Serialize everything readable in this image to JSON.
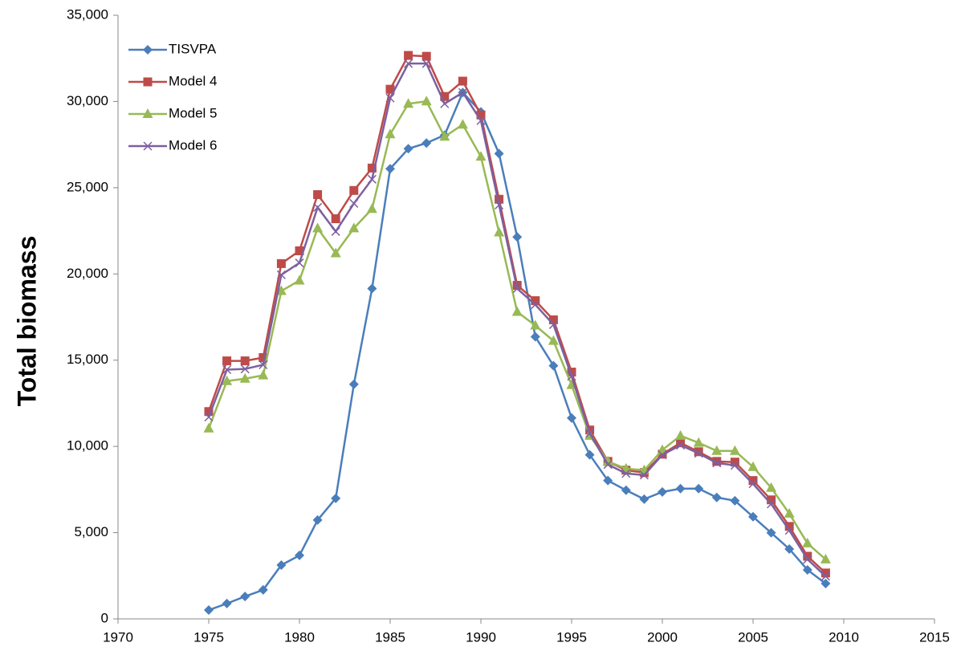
{
  "chart_data": {
    "type": "line",
    "y_label": "Total biomass",
    "x": [
      1975,
      1976,
      1977,
      1978,
      1979,
      1980,
      1981,
      1982,
      1983,
      1984,
      1985,
      1986,
      1987,
      1988,
      1989,
      1990,
      1991,
      1992,
      1993,
      1994,
      1995,
      1996,
      1997,
      1998,
      1999,
      2000,
      2001,
      2002,
      2003,
      2004,
      2005,
      2006,
      2007,
      2008,
      2009
    ],
    "series": [
      {
        "name": "TISVPA",
        "color": "#4a7ebb",
        "marker": "diamond",
        "values": [
          510,
          890,
          1300,
          1680,
          3120,
          3680,
          5730,
          6990,
          13600,
          19150,
          26100,
          27260,
          27590,
          28050,
          30520,
          29400,
          26980,
          22140,
          16360,
          14680,
          11650,
          9510,
          8020,
          7460,
          6940,
          7360,
          7550,
          7550,
          7040,
          6850,
          5920,
          4990,
          4050,
          2840,
          2050
        ]
      },
      {
        "name": "Model 4",
        "color": "#be4b48",
        "marker": "square",
        "values": [
          12020,
          14960,
          14960,
          15150,
          20600,
          21340,
          24600,
          23200,
          24840,
          26140,
          30710,
          32670,
          32620,
          30290,
          31180,
          29220,
          24330,
          19340,
          18450,
          17340,
          14310,
          10950,
          9130,
          8620,
          8480,
          9550,
          10210,
          9690,
          9130,
          9090,
          8020,
          6900,
          5360,
          3630,
          2660
        ]
      },
      {
        "name": "Model 5",
        "color": "#98b954",
        "marker": "triangle",
        "values": [
          11040,
          13790,
          13930,
          14120,
          19010,
          19620,
          22650,
          21200,
          22650,
          23770,
          28100,
          29870,
          30010,
          27960,
          28660,
          26800,
          22410,
          17800,
          17010,
          16120,
          13560,
          10620,
          9130,
          8710,
          8620,
          9790,
          10620,
          10210,
          9740,
          9740,
          8810,
          7600,
          6100,
          4380,
          3450
        ]
      },
      {
        "name": "Model 6",
        "color": "#7d60a0",
        "marker": "x",
        "values": [
          11700,
          14450,
          14490,
          14730,
          19950,
          20640,
          23860,
          22460,
          24090,
          25490,
          30200,
          32200,
          32200,
          29870,
          30520,
          28890,
          24000,
          19150,
          18220,
          17060,
          14070,
          10760,
          8950,
          8430,
          8340,
          9510,
          10070,
          9600,
          9040,
          8900,
          7830,
          6660,
          5130,
          3450,
          2470
        ]
      }
    ],
    "xlim": [
      1970,
      2015
    ],
    "xticks": [
      1970,
      1975,
      1980,
      1985,
      1990,
      1995,
      2000,
      2005,
      2010,
      2015
    ],
    "ylim": [
      0,
      35000
    ],
    "yticks": [
      0,
      {
        "value": 5000,
        "label": "5,000"
      },
      {
        "value": 10000,
        "label": "10,000"
      },
      {
        "value": 15000,
        "label": "15,000"
      },
      {
        "value": 20000,
        "label": "20,000"
      },
      {
        "value": 25000,
        "label": "25,000"
      },
      {
        "value": 30000,
        "label": "30,000"
      },
      {
        "value": 35000,
        "label": "35,000"
      }
    ],
    "legend": "upper-left"
  }
}
